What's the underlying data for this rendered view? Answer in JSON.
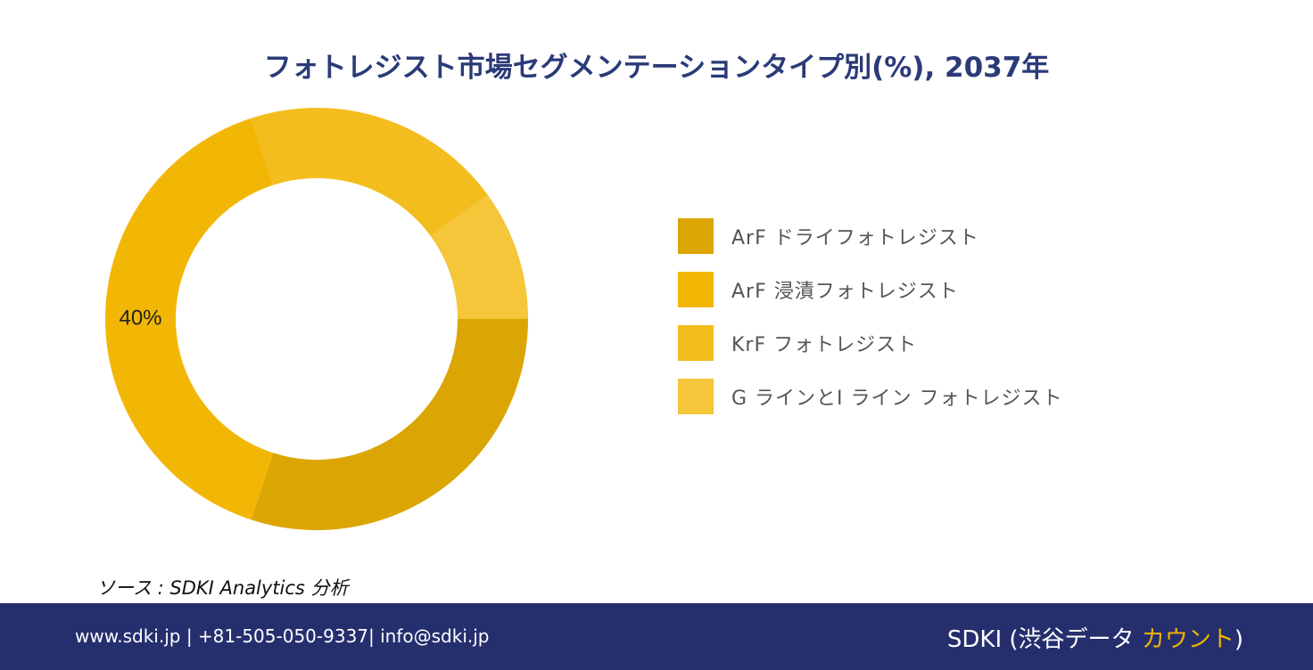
{
  "title": "フォトレジスト市場セグメンテーションタイプ別(%), 2037年",
  "chart_data": {
    "type": "pie",
    "style": "donut",
    "title": "フォトレジスト市場セグメンテーションタイプ別(%), 2037年",
    "categories": [
      "ArF ドライフォトレジスト",
      "ArF 浸漬フォトレジスト",
      "KrF フォトレジスト",
      "G ラインとI ライン フォトレジスト"
    ],
    "values": [
      30,
      40,
      20,
      10
    ],
    "colors": [
      "#dba503",
      "#f2b705",
      "#f4bd1e",
      "#f5c53a"
    ],
    "data_labels": [
      "",
      "40%",
      "",
      ""
    ],
    "legend_position": "right"
  },
  "source": "ソース : SDKI Analytics 分析",
  "footer": {
    "contact": "www.sdki.jp | +81-505-050-9337| info@sdki.jp",
    "brand_main": "SDKI (渋谷データ ",
    "brand_accent": "カウント",
    "brand_close": ")"
  }
}
